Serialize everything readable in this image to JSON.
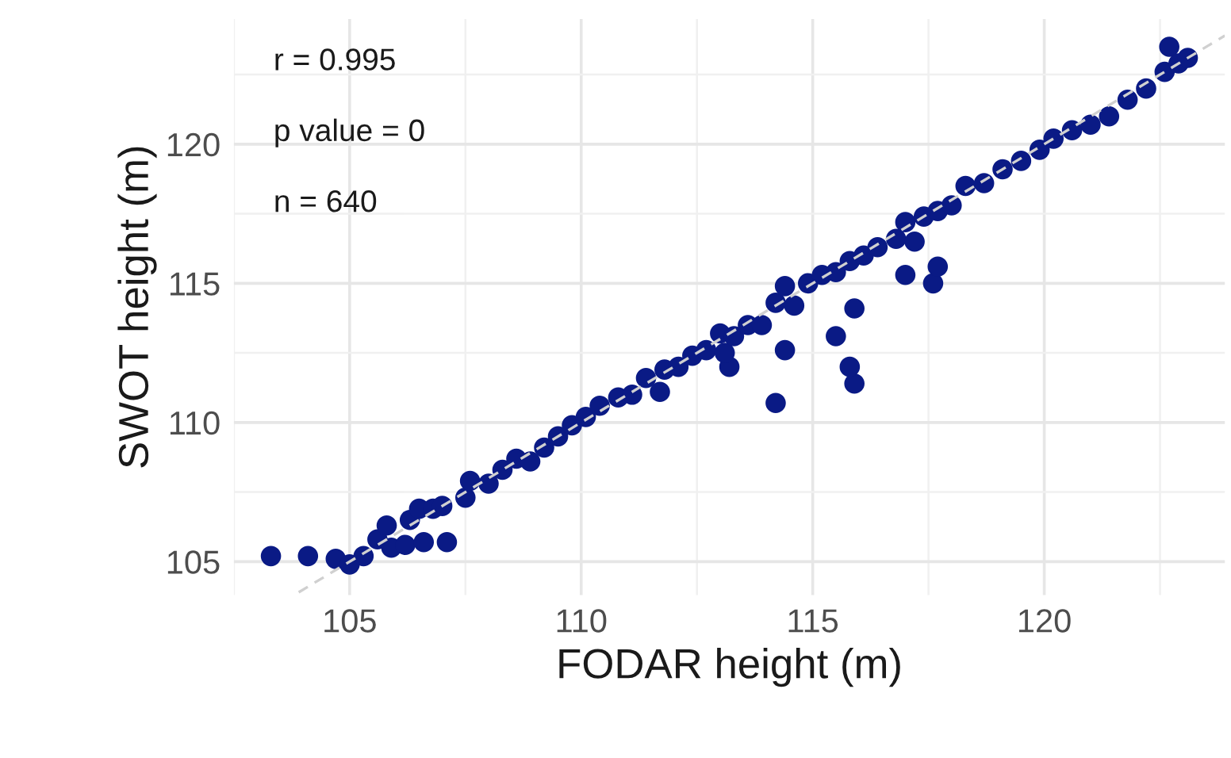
{
  "chart_data": {
    "type": "scatter",
    "xlabel": "FODAR height (m)",
    "ylabel": "SWOT height (m)",
    "xlim": [
      102.5,
      123.9
    ],
    "ylim": [
      103.8,
      124.5
    ],
    "xticks": [
      105,
      110,
      115,
      120
    ],
    "yticks": [
      105,
      110,
      115,
      120
    ],
    "grid": true,
    "marker": "circle",
    "annotations": [
      "r = 0.995",
      "p value = 0",
      "n = 640"
    ],
    "series": [
      {
        "color": "#0a1a85",
        "x": [
          103.3,
          104.1,
          107.1,
          114.2,
          115.9,
          115.8,
          115.5,
          115.9,
          117.6,
          117.7,
          117.0,
          114.4,
          113.2,
          111.7,
          104.7,
          105.0,
          105.3,
          105.6,
          105.8,
          105.9,
          106.2,
          106.3,
          106.5,
          106.6,
          106.8,
          107.0,
          107.5,
          107.6,
          108.0,
          108.3,
          108.6,
          108.9,
          109.2,
          109.5,
          109.8,
          110.1,
          110.4,
          110.8,
          111.1,
          111.4,
          111.8,
          112.1,
          112.4,
          112.7,
          113.0,
          113.1,
          113.3,
          113.6,
          113.9,
          114.2,
          114.4,
          114.6,
          114.9,
          115.2,
          115.5,
          115.8,
          116.1,
          116.4,
          116.8,
          117.0,
          117.2,
          117.4,
          117.7,
          118.0,
          118.3,
          118.7,
          119.1,
          119.5,
          119.9,
          120.2,
          120.6,
          121.0,
          121.4,
          121.8,
          122.2,
          122.6,
          122.7,
          122.9,
          123.1
        ],
        "values": [
          105.2,
          105.2,
          105.7,
          110.7,
          111.4,
          112.0,
          113.1,
          114.1,
          115.0,
          115.6,
          115.3,
          112.6,
          112.0,
          111.1,
          105.1,
          104.9,
          105.2,
          105.8,
          106.3,
          105.5,
          105.6,
          106.5,
          106.9,
          105.7,
          106.9,
          107.0,
          107.3,
          107.9,
          107.8,
          108.3,
          108.7,
          108.6,
          109.1,
          109.5,
          109.9,
          110.2,
          110.6,
          110.9,
          111.0,
          111.6,
          111.9,
          112.0,
          112.4,
          112.6,
          113.2,
          112.5,
          113.1,
          113.5,
          113.5,
          114.3,
          114.9,
          114.2,
          115.0,
          115.3,
          115.4,
          115.8,
          116.0,
          116.3,
          116.6,
          117.2,
          116.5,
          117.4,
          117.6,
          117.8,
          118.5,
          118.6,
          119.1,
          119.4,
          119.8,
          120.2,
          120.5,
          120.7,
          121.0,
          121.6,
          122.0,
          122.6,
          123.5,
          122.9,
          123.1
        ]
      },
      {
        "type": "line",
        "color": "#d0d0d0",
        "line_style": "dashed",
        "marker": "none",
        "x": [
          103.9,
          123.9
        ],
        "values": [
          103.9,
          123.9
        ]
      }
    ]
  }
}
